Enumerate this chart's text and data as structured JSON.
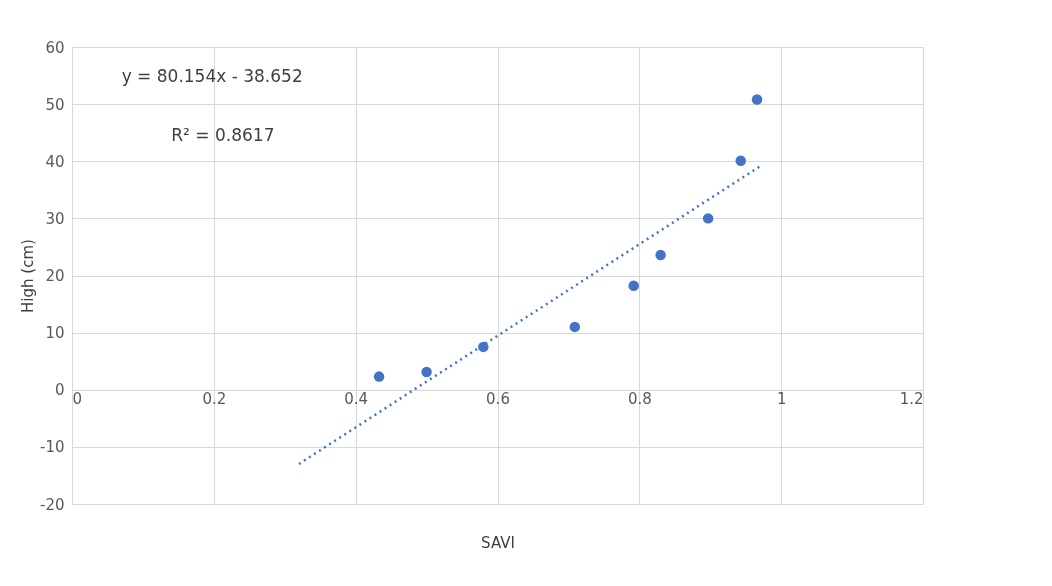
{
  "chart_data": {
    "type": "scatter",
    "xlabel": "SAVI",
    "ylabel": "High (cm)",
    "xlim": [
      0,
      1.2
    ],
    "xticks": [
      0,
      0.2,
      0.4,
      0.6,
      0.8,
      1,
      1.2
    ],
    "ylim": [
      -20,
      60
    ],
    "yticks": [
      -20,
      -10,
      0,
      10,
      20,
      30,
      40,
      50,
      60
    ],
    "grid": true,
    "annotations": [
      "y = 80.154x - 38.652",
      "R² = 0.8617"
    ],
    "series": [
      {
        "type": "scatter",
        "color": "#4472c4",
        "marker": "circle",
        "x": [
          0.433,
          0.5,
          0.58,
          0.709,
          0.792,
          0.83,
          0.897,
          0.943,
          0.966
        ],
        "values": [
          2.3,
          3.1,
          7.5,
          11.0,
          18.2,
          23.6,
          30.0,
          40.1,
          50.8
        ]
      },
      {
        "type": "line",
        "color": "#4472c4",
        "line_style": "dotted",
        "marker": "none",
        "x": [
          0.32,
          0.97
        ],
        "values": [
          -13.0,
          39.1
        ]
      }
    ]
  }
}
